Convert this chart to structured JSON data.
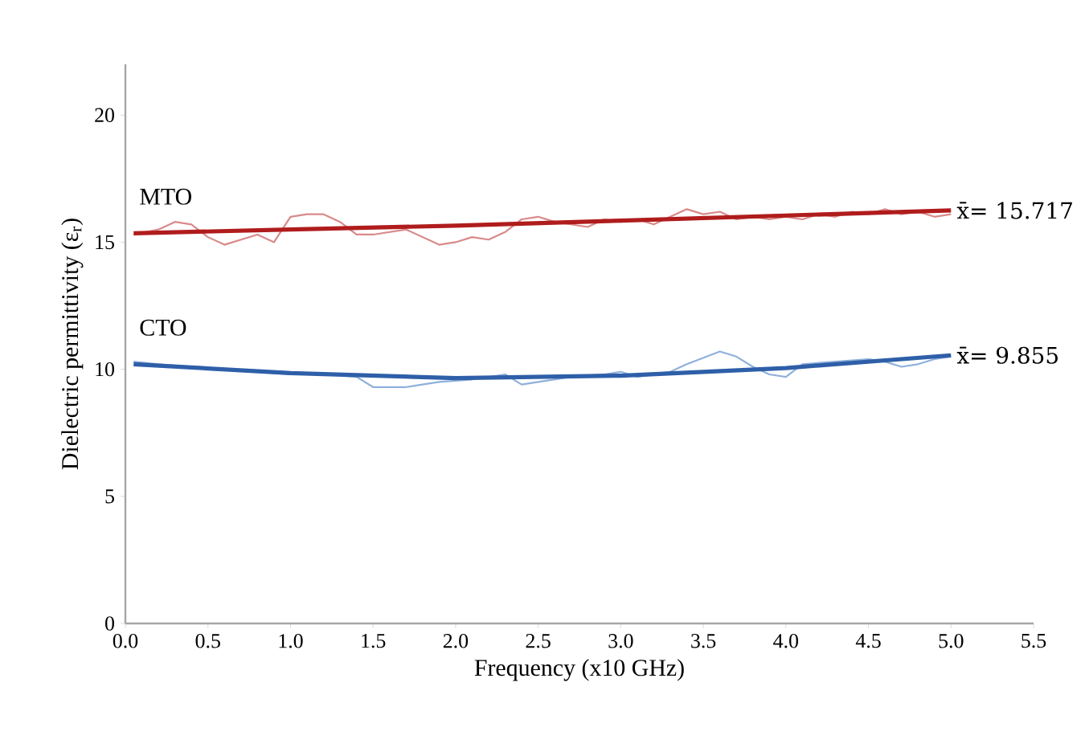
{
  "chart_data": {
    "type": "line",
    "xlabel": "Frequency (x10 GHz)",
    "ylabel": "Dielectric permittivity (ε$_{r}$)",
    "xlim": [
      0,
      5.5
    ],
    "xticks": [
      {
        "value": 0,
        "label": "0.0"
      },
      0.5,
      {
        "value": 1,
        "label": "1.0"
      },
      1.5,
      {
        "value": 2,
        "label": "2.0"
      },
      2.5,
      {
        "value": 3,
        "label": "3.0"
      },
      3.5,
      {
        "value": 4,
        "label": "4.0"
      },
      4.5,
      {
        "value": 5,
        "label": "5.0"
      },
      5.5
    ],
    "ylim": [
      0,
      22
    ],
    "yticks": [
      0,
      5,
      10,
      15,
      20
    ],
    "grid": false,
    "legend": false,
    "marker": "none",
    "line_style": "solid",
    "series": [
      {
        "color": "#d98a8a",
        "x": [
          0.05,
          0.2,
          0.3,
          0.4,
          0.5,
          0.6,
          0.7,
          0.8,
          0.9,
          1.0,
          1.1,
          1.2,
          1.3,
          1.4,
          1.5,
          1.6,
          1.7,
          1.8,
          1.9,
          2.0,
          2.1,
          2.2,
          2.3,
          2.4,
          2.5,
          2.6,
          2.7,
          2.8,
          2.9,
          3.0,
          3.1,
          3.2,
          3.3,
          3.4,
          3.5,
          3.6,
          3.7,
          3.8,
          3.9,
          4.0,
          4.1,
          4.2,
          4.3,
          4.4,
          4.5,
          4.6,
          4.7,
          4.8,
          4.9,
          5.0
        ],
        "values": [
          15.3,
          15.5,
          15.8,
          15.7,
          15.2,
          14.9,
          15.1,
          15.3,
          15.0,
          16.0,
          16.1,
          16.1,
          15.8,
          15.3,
          15.3,
          15.4,
          15.5,
          15.2,
          14.9,
          15.0,
          15.2,
          15.1,
          15.4,
          15.9,
          16.0,
          15.8,
          15.7,
          15.6,
          15.9,
          15.8,
          15.9,
          15.7,
          16.0,
          16.3,
          16.1,
          16.2,
          15.9,
          16.0,
          15.9,
          16.0,
          15.9,
          16.1,
          16.0,
          16.2,
          16.1,
          16.3,
          16.1,
          16.2,
          16.0,
          16.1
        ]
      },
      {
        "name": "MTO",
        "color": "#b01c1c",
        "x": [
          0.05,
          1.0,
          2.0,
          3.0,
          4.0,
          5.0
        ],
        "values": [
          15.35,
          15.5,
          15.65,
          15.85,
          16.05,
          16.25
        ]
      },
      {
        "color": "#8fb0dc",
        "x": [
          0.05,
          0.2,
          0.4,
          0.6,
          0.8,
          1.0,
          1.2,
          1.4,
          1.5,
          1.7,
          1.9,
          2.0,
          2.1,
          2.3,
          2.4,
          2.5,
          2.7,
          2.9,
          3.0,
          3.1,
          3.3,
          3.4,
          3.6,
          3.7,
          3.8,
          3.9,
          4.0,
          4.1,
          4.3,
          4.5,
          4.6,
          4.7,
          4.8,
          4.9,
          5.0
        ],
        "values": [
          10.3,
          10.2,
          10.1,
          10.0,
          9.9,
          9.8,
          9.8,
          9.7,
          9.3,
          9.3,
          9.5,
          null,
          9.6,
          9.8,
          9.4,
          9.5,
          9.7,
          9.8,
          9.9,
          9.7,
          9.9,
          10.2,
          10.7,
          10.5,
          10.1,
          9.8,
          9.7,
          10.2,
          10.3,
          10.4,
          10.3,
          10.1,
          10.2,
          10.4,
          10.5
        ]
      },
      {
        "name": "CTO",
        "color": "#2e5fa8",
        "x": [
          0.05,
          1.0,
          2.0,
          3.0,
          4.0,
          5.0
        ],
        "values": [
          10.2,
          9.85,
          9.65,
          9.75,
          10.05,
          10.55
        ]
      }
    ],
    "annotations": [
      {
        "text": "x̄= 15.717",
        "x": 5.0,
        "y": 16.25
      },
      {
        "text": "x̄= 9.855",
        "x": 5.0,
        "y": 10.55
      }
    ]
  }
}
